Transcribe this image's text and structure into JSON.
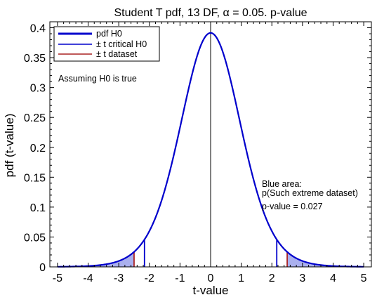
{
  "chart_data": {
    "type": "line",
    "title": "Student T pdf, 13 DF, α = 0.05.   p-value",
    "xlabel": "t-value",
    "ylabel": "pdf  (t-value)",
    "xlim": [
      -5.25,
      5.25
    ],
    "ylim": [
      0,
      0.41
    ],
    "x_ticks": [
      "-5",
      "-4",
      "-3",
      "-2",
      "-1",
      "0",
      "1",
      "2",
      "3",
      "4",
      "5"
    ],
    "y_ticks": [
      "0",
      "0.05",
      "0.1",
      "0.15",
      "0.2",
      "0.25",
      "0.3",
      "0.35",
      "0.4"
    ],
    "degrees_of_freedom": 13,
    "t_critical": 2.16,
    "t_dataset": 2.5,
    "p_value": 0.027,
    "grid": false,
    "legend_position": "top-left",
    "legend": [
      {
        "label": "pdf H0",
        "color": "#0000cc"
      },
      {
        "label": "± t critical H0",
        "color": "#0000cc"
      },
      {
        "label": "± t dataset",
        "color": "#aa2222"
      }
    ],
    "annotations": {
      "assumption": "Assuming H0 is true",
      "blue_area_1": "Blue area:",
      "blue_area_2": "p(Such extreme dataset)",
      "blue_area_3": "p-value = 0.027"
    },
    "colors": {
      "curve": "#0000cc",
      "critical": "#0000cc",
      "dataset": "#aa2222",
      "fill": "#aab0ee"
    }
  }
}
